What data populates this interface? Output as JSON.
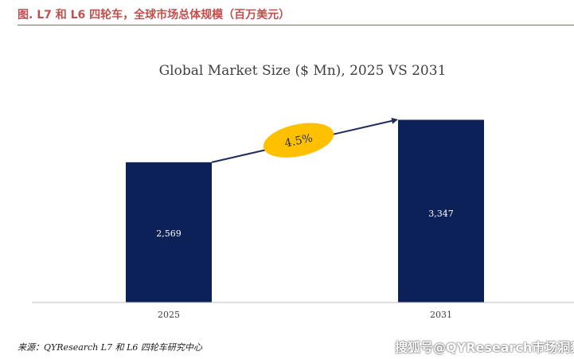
{
  "header": {
    "caption": "图.   L7 和 L6 四轮车，全球市场总体规模（百万美元）"
  },
  "chart_data": {
    "type": "bar",
    "title": "Global Market Size ($ Mn), 2025 VS 2031",
    "categories": [
      "2025",
      "2031"
    ],
    "values": [
      2569,
      3347
    ],
    "value_labels": [
      "2,569",
      "3,347"
    ],
    "ylim": [
      0,
      3500
    ],
    "grid": false,
    "legend": "none",
    "bar_color": "#0c2157",
    "annotation": {
      "type": "cagr-arrow",
      "label": "4.5%",
      "from": "2025",
      "to": "2031",
      "badge_color": "#ffc000"
    }
  },
  "footer": {
    "source": "来源：QYResearch L7 和 L6 四轮车研究中心",
    "watermark": "搜狐号@QYResearch市场洞察"
  }
}
